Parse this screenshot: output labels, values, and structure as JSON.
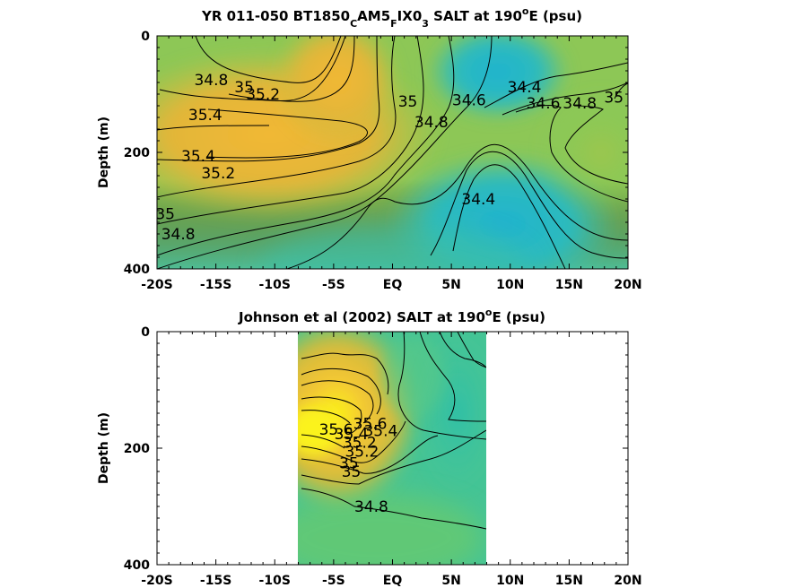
{
  "chart_data": [
    {
      "type": "contour",
      "title_parts": [
        "YR 011-050 BT1850",
        "C",
        "AM5",
        "F",
        "IX0",
        "3",
        " SALT at 190",
        "o",
        "E (psu)"
      ],
      "title_roles": [
        "n",
        "sub",
        "n",
        "sub",
        "n",
        "sub",
        "n",
        "sup",
        "n"
      ],
      "ylabel": "Depth (m)",
      "x_ticks": [
        "-20S",
        "-15S",
        "-10S",
        "-5S",
        "EQ",
        "5N",
        "10N",
        "15N",
        "20N"
      ],
      "y_ticks": [
        "0",
        "200",
        "400"
      ],
      "xlim": [
        -20,
        20
      ],
      "ylim": [
        0,
        400
      ],
      "y_reversed": true,
      "data_extent_x": [
        -20,
        20
      ],
      "contour_labels": [
        {
          "text": "34.8",
          "x": -15.4,
          "y": 75
        },
        {
          "text": "35",
          "x": -12.6,
          "y": 88
        },
        {
          "text": "35.2",
          "x": -11.0,
          "y": 100
        },
        {
          "text": "35.4",
          "x": -15.9,
          "y": 135
        },
        {
          "text": "35.4",
          "x": -16.5,
          "y": 206
        },
        {
          "text": "35.2",
          "x": -14.8,
          "y": 235
        },
        {
          "text": "35",
          "x": -19.3,
          "y": 305
        },
        {
          "text": "34.8",
          "x": -18.2,
          "y": 340
        },
        {
          "text": "35",
          "x": 1.3,
          "y": 112
        },
        {
          "text": "34.8",
          "x": 3.3,
          "y": 148
        },
        {
          "text": "34.6",
          "x": 6.5,
          "y": 110
        },
        {
          "text": "34.4",
          "x": 11.2,
          "y": 88
        },
        {
          "text": "34.6",
          "x": 12.8,
          "y": 115
        },
        {
          "text": "34.8",
          "x": 15.9,
          "y": 115
        },
        {
          "text": "35",
          "x": 18.8,
          "y": 105
        },
        {
          "text": "34.4",
          "x": 7.3,
          "y": 280
        }
      ]
    },
    {
      "type": "contour",
      "title_parts": [
        "Johnson et al (2002) SALT at 190",
        "o",
        "E (psu)"
      ],
      "title_roles": [
        "n",
        "sup",
        "n"
      ],
      "ylabel": "Depth (m)",
      "x_ticks": [
        "-20S",
        "-15S",
        "-10S",
        "-5S",
        "EQ",
        "5N",
        "10N",
        "15N",
        "20N"
      ],
      "y_ticks": [
        "0",
        "200",
        "400"
      ],
      "xlim": [
        -20,
        20
      ],
      "ylim": [
        0,
        400
      ],
      "y_reversed": true,
      "data_extent_x": [
        -8,
        8
      ],
      "contour_labels": [
        {
          "text": "35.6",
          "x": -4.8,
          "y": 168
        },
        {
          "text": "35.4",
          "x": -3.5,
          "y": 175
        },
        {
          "text": "35.2",
          "x": -2.8,
          "y": 190
        },
        {
          "text": "35.6",
          "x": -1.9,
          "y": 158
        },
        {
          "text": "35.4",
          "x": -1.0,
          "y": 170
        },
        {
          "text": "35.2",
          "x": -2.6,
          "y": 205
        },
        {
          "text": "35",
          "x": -3.7,
          "y": 225
        },
        {
          "text": "35",
          "x": -3.5,
          "y": 240
        },
        {
          "text": "34.8",
          "x": -1.8,
          "y": 300
        }
      ]
    }
  ],
  "colors": {
    "colormap": [
      "#352a87",
      "#1f6adf",
      "#10a0c9",
      "#2cbea3",
      "#6cca6a",
      "#b4c23b",
      "#e9b72f",
      "#fde825",
      "#f9fb0e"
    ],
    "frame": "#000000",
    "contour": "#000000"
  }
}
